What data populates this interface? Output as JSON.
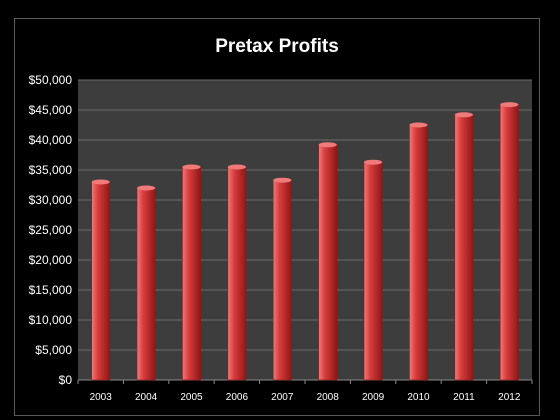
{
  "chart_data": {
    "type": "bar",
    "title": "Pretax Profits",
    "xlabel": "",
    "ylabel": "",
    "categories": [
      "2003",
      "2004",
      "2005",
      "2006",
      "2007",
      "2008",
      "2009",
      "2010",
      "2011",
      "2012"
    ],
    "values": [
      33000,
      32000,
      35500,
      35500,
      33300,
      39200,
      36300,
      42500,
      44200,
      45900
    ],
    "ylim": [
      0,
      50000
    ],
    "yticks": [
      "$0",
      "$5,000",
      "$10,000",
      "$15,000",
      "$20,000",
      "$25,000",
      "$30,000",
      "$35,000",
      "$40,000",
      "$45,000",
      "$50,000"
    ],
    "grid": true,
    "legend": "none",
    "colors": {
      "bar": "#d83c3c",
      "bar_highlight": "#f07a7a",
      "bar_dark": "#8e1818",
      "plot_background": "#3d3d3d",
      "gridline": "#6a6a6a",
      "page_background": "#000000",
      "text": "#ffffff"
    }
  }
}
